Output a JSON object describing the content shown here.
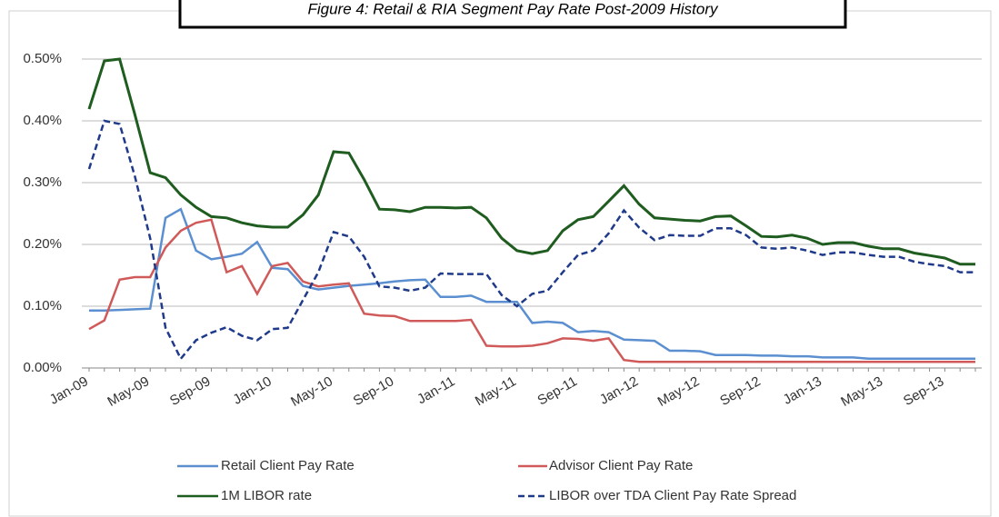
{
  "chart_data": {
    "type": "line",
    "title": "Figure 4: Retail & RIA Segment Pay Rate Post-2009 History",
    "categories": [
      "Jan-09",
      null,
      null,
      null,
      "May-09",
      null,
      null,
      null,
      "Sep-09",
      null,
      null,
      null,
      "Jan-10",
      null,
      null,
      null,
      "May-10",
      null,
      null,
      null,
      "Sep-10",
      null,
      null,
      null,
      "Jan-11",
      null,
      null,
      null,
      "May-11",
      null,
      null,
      null,
      "Sep-11",
      null,
      null,
      null,
      "Jan-12",
      null,
      null,
      null,
      "May-12",
      null,
      null,
      null,
      "Sep-12",
      null,
      null,
      null,
      "Jan-13",
      null,
      null,
      null,
      "May-13",
      null,
      null,
      null,
      "Sep-13",
      null,
      null
    ],
    "ylim": [
      0,
      0.55
    ],
    "yticks": [
      {
        "value": 0,
        "label": "0.00%"
      },
      {
        "value": 0.1,
        "label": "0.10%"
      },
      {
        "value": 0.2,
        "label": "0.20%"
      },
      {
        "value": 0.3,
        "label": "0.30%"
      },
      {
        "value": 0.4,
        "label": "0.40%"
      },
      {
        "value": 0.5,
        "label": "0.50%"
      }
    ],
    "grid": true,
    "legend": "bottom",
    "series": [
      {
        "name": "Retail Client Pay Rate",
        "color": "#5b8fd0",
        "line_style": "solid",
        "values": [
          0.093,
          0.093,
          0.094,
          0.095,
          0.096,
          0.243,
          0.257,
          0.19,
          0.176,
          0.18,
          0.185,
          0.204,
          0.162,
          0.16,
          0.133,
          0.127,
          0.13,
          0.133,
          0.135,
          0.137,
          0.14,
          0.142,
          0.143,
          0.115,
          0.115,
          0.117,
          0.107,
          0.107,
          0.107,
          0.073,
          0.075,
          0.073,
          0.058,
          0.06,
          0.058,
          0.046,
          0.045,
          0.044,
          0.028,
          0.028,
          0.027,
          0.021,
          0.021,
          0.021,
          0.02,
          0.02,
          0.019,
          0.019,
          0.017,
          0.017,
          0.017,
          0.015,
          0.015,
          0.015,
          0.015,
          0.015,
          0.015,
          0.015,
          0.015
        ]
      },
      {
        "name": "Advisor Client Pay Rate",
        "color": "#d05a5a",
        "line_style": "solid",
        "values": [
          0.063,
          0.077,
          0.143,
          0.147,
          0.147,
          0.195,
          0.222,
          0.235,
          0.24,
          0.155,
          0.165,
          0.12,
          0.165,
          0.17,
          0.14,
          0.132,
          0.135,
          0.137,
          0.088,
          0.085,
          0.084,
          0.076,
          0.076,
          0.076,
          0.076,
          0.078,
          0.036,
          0.035,
          0.035,
          0.036,
          0.04,
          0.048,
          0.047,
          0.044,
          0.048,
          0.013,
          0.01,
          0.01,
          0.01,
          0.01,
          0.01,
          0.01,
          0.01,
          0.01,
          0.01,
          0.01,
          0.01,
          0.01,
          0.01,
          0.01,
          0.01,
          0.01,
          0.01,
          0.01,
          0.01,
          0.01,
          0.01,
          0.01,
          0.01
        ]
      },
      {
        "name": "1M LIBOR rate",
        "color": "#1f5c1f",
        "line_style": "solid",
        "values": [
          0.419,
          0.497,
          0.5,
          0.41,
          0.316,
          0.308,
          0.28,
          0.26,
          0.245,
          0.243,
          0.235,
          0.23,
          0.228,
          0.228,
          0.248,
          0.28,
          0.35,
          0.348,
          0.305,
          0.257,
          0.256,
          0.253,
          0.26,
          0.26,
          0.259,
          0.26,
          0.243,
          0.21,
          0.19,
          0.185,
          0.19,
          0.222,
          0.24,
          0.245,
          0.27,
          0.295,
          0.265,
          0.243,
          0.241,
          0.239,
          0.238,
          0.245,
          0.246,
          0.23,
          0.213,
          0.212,
          0.215,
          0.21,
          0.2,
          0.203,
          0.203,
          0.197,
          0.193,
          0.193,
          0.186,
          0.182,
          0.178,
          0.168,
          0.168
        ]
      },
      {
        "name": "LIBOR over TDA Client Pay Rate Spread",
        "color": "#1f3a8a",
        "line_style": "dashed",
        "values": [
          0.322,
          0.4,
          0.395,
          0.31,
          0.21,
          0.065,
          0.015,
          0.045,
          0.057,
          0.066,
          0.052,
          0.045,
          0.063,
          0.065,
          0.11,
          0.155,
          0.22,
          0.213,
          0.18,
          0.132,
          0.13,
          0.125,
          0.13,
          0.153,
          0.152,
          0.152,
          0.152,
          0.118,
          0.1,
          0.12,
          0.125,
          0.155,
          0.183,
          0.19,
          0.218,
          0.255,
          0.227,
          0.207,
          0.215,
          0.214,
          0.214,
          0.226,
          0.226,
          0.215,
          0.195,
          0.193,
          0.195,
          0.19,
          0.183,
          0.187,
          0.187,
          0.183,
          0.18,
          0.18,
          0.172,
          0.168,
          0.165,
          0.155,
          0.155
        ]
      }
    ]
  }
}
